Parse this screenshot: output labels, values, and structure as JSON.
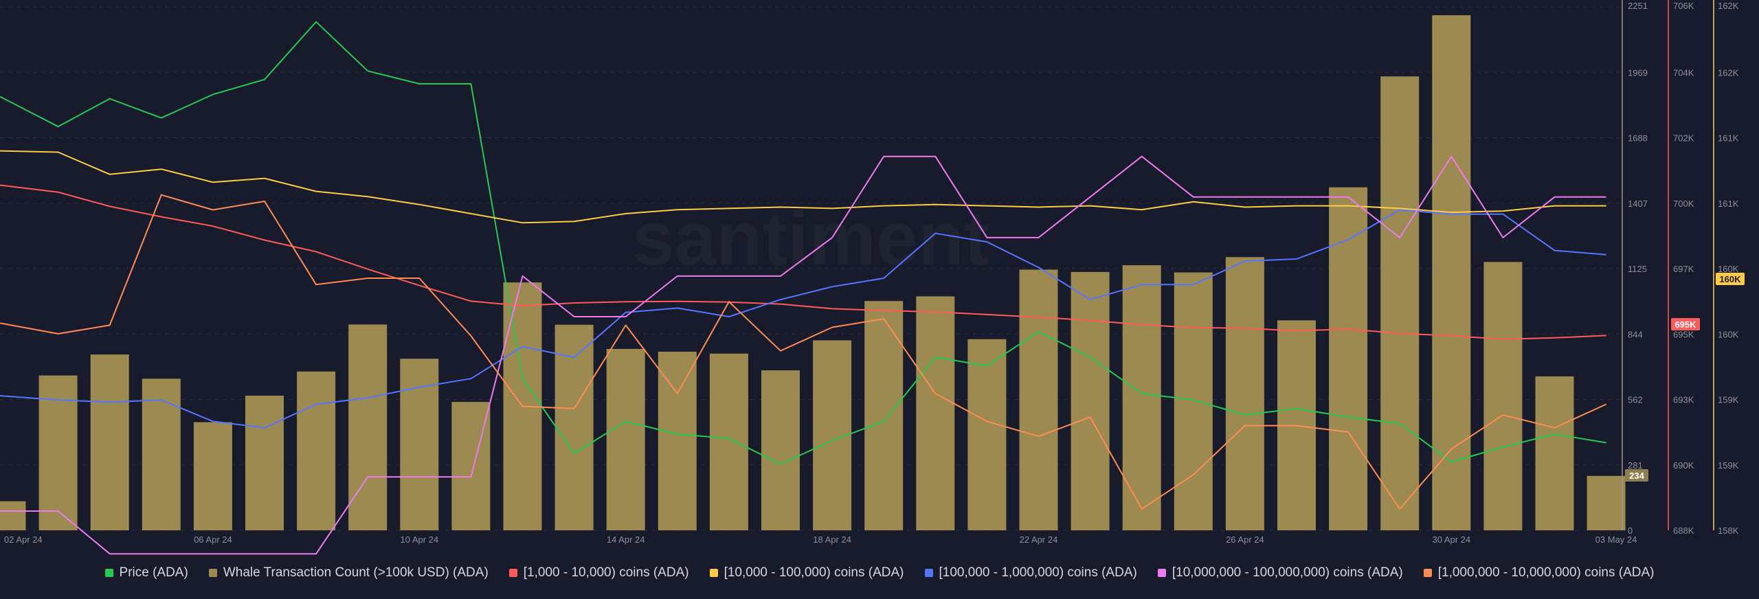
{
  "watermark": "santiment",
  "chart_data": {
    "type": "bar+line",
    "dates": [
      "2024-04-02",
      "2024-04-03",
      "2024-04-04",
      "2024-04-05",
      "2024-04-06",
      "2024-04-07",
      "2024-04-08",
      "2024-04-09",
      "2024-04-10",
      "2024-04-11",
      "2024-04-12",
      "2024-04-13",
      "2024-04-14",
      "2024-04-15",
      "2024-04-16",
      "2024-04-17",
      "2024-04-18",
      "2024-04-19",
      "2024-04-20",
      "2024-04-21",
      "2024-04-22",
      "2024-04-23",
      "2024-04-24",
      "2024-04-25",
      "2024-04-26",
      "2024-04-27",
      "2024-04-28",
      "2024-04-29",
      "2024-04-30",
      "2024-05-01",
      "2024-05-02",
      "2024-05-03"
    ],
    "x_tick_labels": [
      {
        "date": "2024-04-02",
        "label": "02 Apr 24"
      },
      {
        "date": "2024-04-06",
        "label": "06 Apr 24"
      },
      {
        "date": "2024-04-10",
        "label": "10 Apr 24"
      },
      {
        "date": "2024-04-14",
        "label": "14 Apr 24"
      },
      {
        "date": "2024-04-18",
        "label": "18 Apr 24"
      },
      {
        "date": "2024-04-22",
        "label": "22 Apr 24"
      },
      {
        "date": "2024-04-26",
        "label": "26 Apr 24"
      },
      {
        "date": "2024-04-30",
        "label": "30 Apr 24"
      },
      {
        "date": "2024-05-03",
        "label": "03 May 24"
      }
    ],
    "axes": {
      "whale": {
        "min": 0,
        "max": 2251,
        "ticks": [
          "0",
          "281",
          "562",
          "844",
          "1125",
          "1407",
          "1688",
          "1969",
          "2251"
        ],
        "color": "#9b9a90"
      },
      "red": {
        "min": 688000,
        "max": 706000,
        "ticks": [
          "688K",
          "690K",
          "693K",
          "695K",
          "697K",
          "700K",
          "702K",
          "704K",
          "706K"
        ],
        "color": "#ff5b5b"
      },
      "yellow": {
        "min": 158000,
        "max": 162000,
        "ticks": [
          "158K",
          "159K",
          "159K",
          "160K",
          "160K",
          "161K",
          "161K",
          "162K",
          "162K"
        ],
        "color": "#ffcb47"
      }
    },
    "badges": [
      {
        "text": "234",
        "series": "whale",
        "bg": "#8f7e4f",
        "fg": "#ffffff"
      },
      {
        "text": "695K",
        "series": "red",
        "bg": "#ff5b5b",
        "fg": "#ffffff"
      },
      {
        "text": "160K",
        "series": "yellow",
        "bg": "#ffcb47",
        "fg": "#1a1a1a"
      }
    ],
    "series": [
      {
        "key": "price",
        "name": "Price (ADA)",
        "type": "line",
        "color": "#26c953",
        "values": [
          0.613,
          0.599,
          0.612,
          0.603,
          0.614,
          0.621,
          0.648,
          0.625,
          0.619,
          0.619,
          0.481,
          0.446,
          0.461,
          0.455,
          0.453,
          0.441,
          0.452,
          0.461,
          0.491,
          0.487,
          0.503,
          0.491,
          0.474,
          0.471,
          0.464,
          0.467,
          0.463,
          0.46,
          0.442,
          0.449,
          0.455,
          0.451
        ]
      },
      {
        "key": "whale",
        "name": "Whale Transaction Count (>100k USD) (ADA)",
        "type": "bar",
        "color": "#9c8a51",
        "values": [
          125,
          666,
          756,
          652,
          465,
          579,
          683,
          885,
          738,
          552,
          1066,
          884,
          780,
          768,
          760,
          688,
          817,
          986,
          1006,
          822,
          1121,
          1111,
          1140,
          1109,
          1175,
          903,
          1475,
          1952,
          2215,
          1154,
          662,
          234
        ]
      },
      {
        "key": "c1k",
        "name": "[1,000 - 10,000) coins (ADA)",
        "type": "line",
        "color": "#ff5b5b",
        "axis": "red",
        "values": [
          699.87,
          699.63,
          699.14,
          698.78,
          698.46,
          697.98,
          697.58,
          696.98,
          696.42,
          695.88,
          695.72,
          695.82,
          695.86,
          695.87,
          695.85,
          695.78,
          695.62,
          695.56,
          695.51,
          695.42,
          695.33,
          695.22,
          695.07,
          694.97,
          694.95,
          694.86,
          694.92,
          694.77,
          694.69,
          694.57,
          694.62,
          694.7
        ]
      },
      {
        "key": "c10k",
        "name": "[10,000 - 100,000) coins (ADA)",
        "type": "line",
        "color": "#ffcb47",
        "axis": "yellow",
        "values": [
          160.9,
          160.89,
          160.72,
          160.76,
          160.66,
          160.69,
          160.59,
          160.55,
          160.49,
          160.42,
          160.35,
          160.36,
          160.42,
          160.45,
          160.46,
          160.47,
          160.46,
          160.48,
          160.49,
          160.48,
          160.47,
          160.48,
          160.45,
          160.51,
          160.47,
          160.48,
          160.48,
          160.46,
          160.43,
          160.44,
          160.48,
          160.48
        ]
      },
      {
        "key": "c100k",
        "name": "[100,000  - 1,000,000) coins (ADA)",
        "type": "line",
        "color": "#5676ff",
        "values": [
          0.473,
          0.471,
          0.47,
          0.471,
          0.461,
          0.458,
          0.469,
          0.472,
          0.477,
          0.481,
          0.496,
          0.491,
          0.512,
          0.514,
          0.51,
          0.518,
          0.524,
          0.528,
          0.549,
          0.545,
          0.533,
          0.518,
          0.525,
          0.525,
          0.536,
          0.537,
          0.546,
          0.56,
          0.558,
          0.558,
          0.541,
          0.539
        ]
      },
      {
        "key": "c10m",
        "name": "[10,000,000 - 100,000,000) coins (ADA)",
        "type": "line",
        "color": "#ee7bef",
        "values": [
          0.419,
          0.419,
          0.399,
          0.399,
          0.399,
          0.399,
          0.399,
          0.435,
          0.435,
          0.435,
          0.529,
          0.51,
          0.51,
          0.529,
          0.529,
          0.529,
          0.547,
          0.585,
          0.585,
          0.547,
          0.547,
          0.566,
          0.585,
          0.566,
          0.566,
          0.566,
          0.566,
          0.547,
          0.585,
          0.547,
          0.566,
          0.566
        ]
      },
      {
        "key": "c1m",
        "name": "[1,000,000 - 10,000,000) coins (ADA)",
        "type": "line",
        "color": "#ff8c52",
        "values": [
          0.507,
          0.502,
          0.506,
          0.567,
          0.56,
          0.564,
          0.525,
          0.528,
          0.528,
          0.501,
          0.468,
          0.467,
          0.506,
          0.474,
          0.517,
          0.494,
          0.505,
          0.509,
          0.474,
          0.461,
          0.454,
          0.463,
          0.42,
          0.436,
          0.459,
          0.459,
          0.456,
          0.42,
          0.448,
          0.464,
          0.458,
          0.469
        ]
      }
    ]
  }
}
